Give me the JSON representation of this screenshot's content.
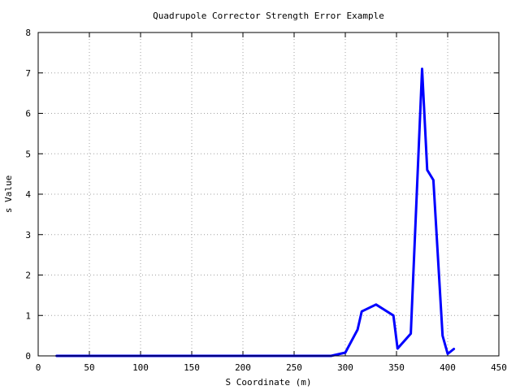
{
  "chart_data": {
    "type": "line",
    "title": "Quadrupole Corrector Strength Error Example",
    "xlabel": "S Coordinate (m)",
    "ylabel": "s Value",
    "xlim": [
      0,
      450
    ],
    "ylim": [
      0,
      8
    ],
    "xticks": [
      0,
      50,
      100,
      150,
      200,
      250,
      300,
      350,
      400,
      450
    ],
    "yticks": [
      0,
      1,
      2,
      3,
      4,
      5,
      6,
      7,
      8
    ],
    "grid": true,
    "series": [
      {
        "color": "#0000ff",
        "x": [
          18,
          100,
          200,
          286,
          300,
          312,
          316,
          330,
          347,
          351,
          364,
          375,
          380,
          386,
          395,
          400,
          406
        ],
        "y": [
          0.0,
          0.0,
          0.0,
          0.0,
          0.08,
          0.65,
          1.1,
          1.27,
          1.0,
          0.18,
          0.55,
          7.1,
          4.6,
          4.35,
          0.5,
          0.05,
          0.17
        ]
      }
    ]
  }
}
